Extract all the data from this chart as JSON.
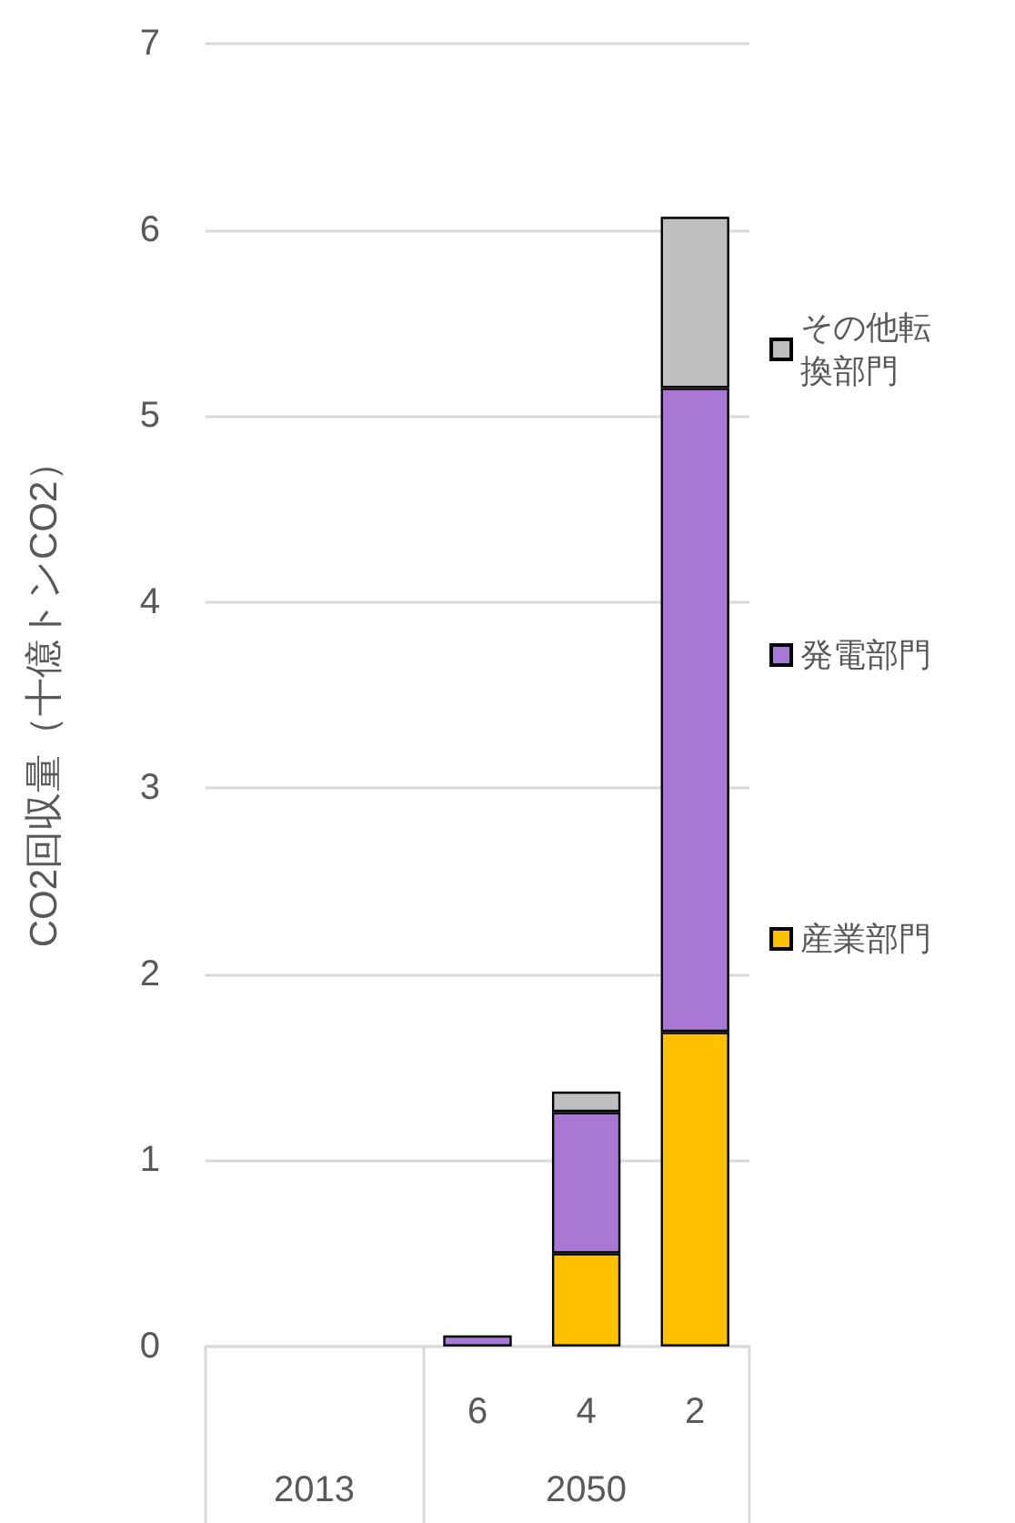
{
  "chart_data": {
    "type": "bar",
    "stacked": true,
    "categories": [
      null,
      null,
      "6",
      "4",
      "2"
    ],
    "series": [
      {
        "name": "産業部門",
        "color": "#ffc000",
        "values": [
          null,
          null,
          null,
          0.5,
          1.69
        ]
      },
      {
        "name": "発電部門",
        "color": "#a977d4",
        "values": [
          null,
          null,
          0.06,
          0.76,
          3.46
        ]
      },
      {
        "name": "その他転換部門",
        "color": "#bfbfbf",
        "values": [
          null,
          null,
          null,
          0.11,
          0.92
        ]
      }
    ],
    "ylabel": "CO2回収量（十億トンCO2）",
    "ylim": [
      0,
      7
    ],
    "yticks": [
      0,
      1,
      2,
      3,
      4,
      5,
      6,
      7
    ],
    "grid": "y",
    "legend": "right",
    "annotations": [
      "2013",
      "2050"
    ]
  }
}
